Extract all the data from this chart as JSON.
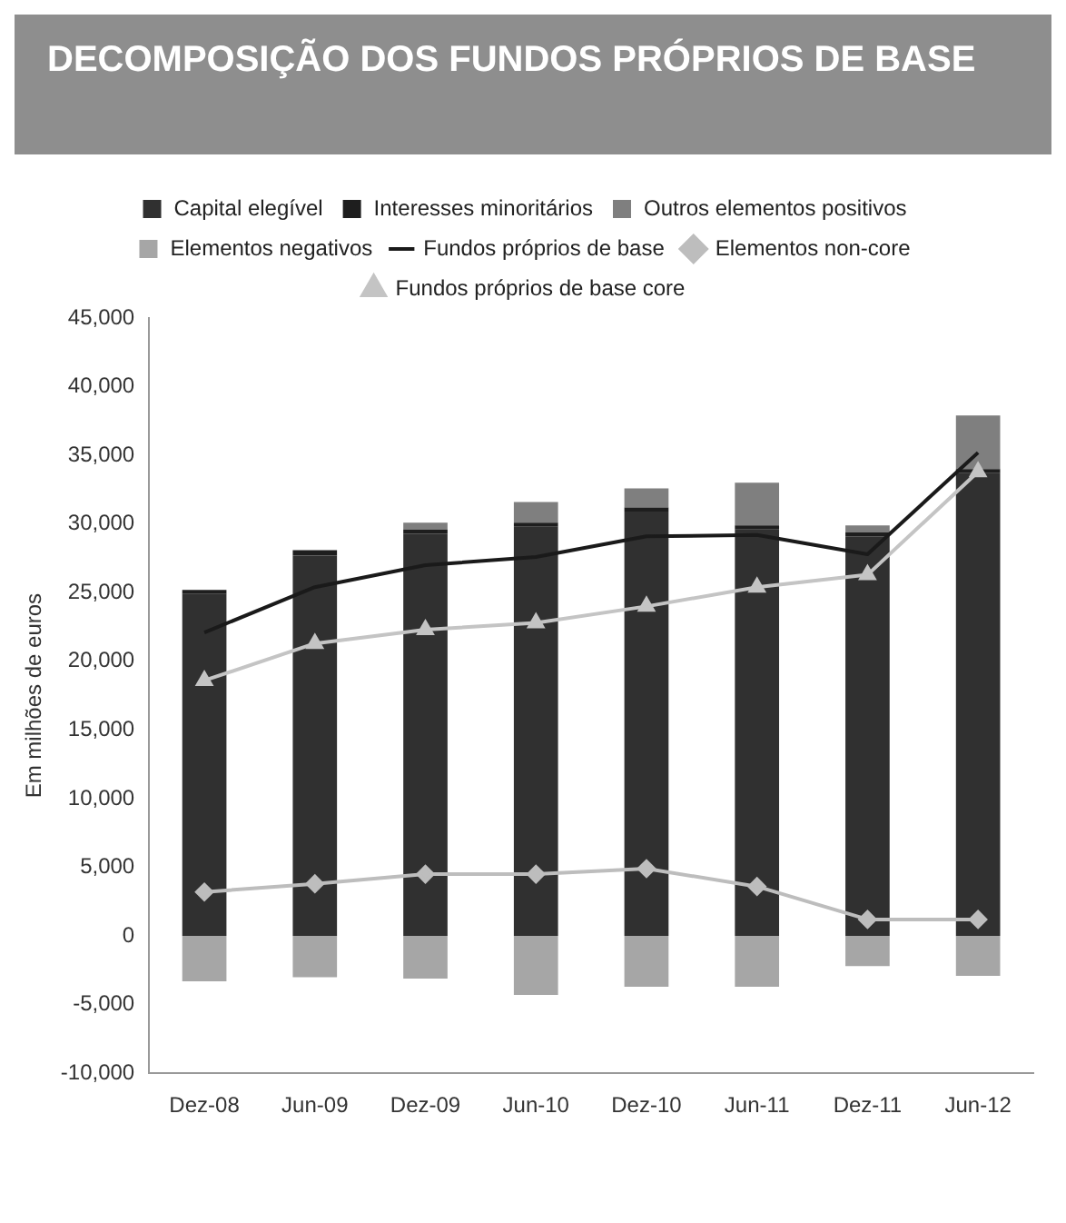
{
  "chart_data": {
    "type": "bar",
    "title": "DECOMPOSIÇÃO DOS FUNDOS PRÓPRIOS DE BASE",
    "ylabel": "Em milhões de euros",
    "stacked": true,
    "categories": [
      "Dez-08",
      "Jun-09",
      "Dez-09",
      "Jun-10",
      "Dez-10",
      "Jun-11",
      "Dez-11",
      "Jun-12"
    ],
    "series": [
      {
        "name": "Capital elegível",
        "color": "#303030",
        "values": [
          24900,
          27700,
          29300,
          29800,
          30900,
          29600,
          29100,
          33700
        ]
      },
      {
        "name": "Interesses minoritários",
        "color": "#1e1e1e",
        "values": [
          300,
          400,
          300,
          300,
          300,
          300,
          300,
          300
        ]
      },
      {
        "name": "Outros elementos positivos",
        "color": "#7f7f7f",
        "values": [
          0,
          0,
          500,
          1500,
          1400,
          3100,
          500,
          3900
        ]
      },
      {
        "name": "Elementos negativos",
        "color": "#a6a6a6",
        "values": [
          -3300,
          -3000,
          -3100,
          -4300,
          -3700,
          -3700,
          -2200,
          -2900
        ]
      },
      {
        "name": "Fundos próprios de base",
        "type": "line",
        "color": "#1a1a1a",
        "marker": "none",
        "values": [
          22100,
          25400,
          27000,
          27600,
          29100,
          29200,
          27800,
          35200
        ]
      },
      {
        "name": "Elementos non-core",
        "type": "line",
        "color": "#bdbdbd",
        "marker": "diamond",
        "values": [
          3200,
          3800,
          4500,
          4500,
          4900,
          3600,
          1200,
          1200
        ]
      },
      {
        "name": "Fundos próprios de base core",
        "type": "line",
        "color": "#c4c4c4",
        "marker": "triangle",
        "values": [
          18600,
          21300,
          22300,
          22800,
          24000,
          25400,
          26300,
          33800
        ]
      }
    ],
    "ylim": [
      -10000,
      45000
    ],
    "yticks": [
      {
        "value": -10000,
        "label": "-10,000"
      },
      {
        "value": -5000,
        "label": "-5,000"
      },
      0,
      {
        "value": 5000,
        "label": "5,000"
      },
      {
        "value": 10000,
        "label": "10,000"
      },
      {
        "value": 15000,
        "label": "15,000"
      },
      {
        "value": 20000,
        "label": "20,000"
      },
      {
        "value": 25000,
        "label": "25,000"
      },
      {
        "value": 30000,
        "label": "30,000"
      },
      {
        "value": 35000,
        "label": "35,000"
      },
      {
        "value": 40000,
        "label": "40,000"
      },
      {
        "value": 45000,
        "label": "45,000"
      }
    ],
    "grid": false,
    "legend": "top"
  }
}
